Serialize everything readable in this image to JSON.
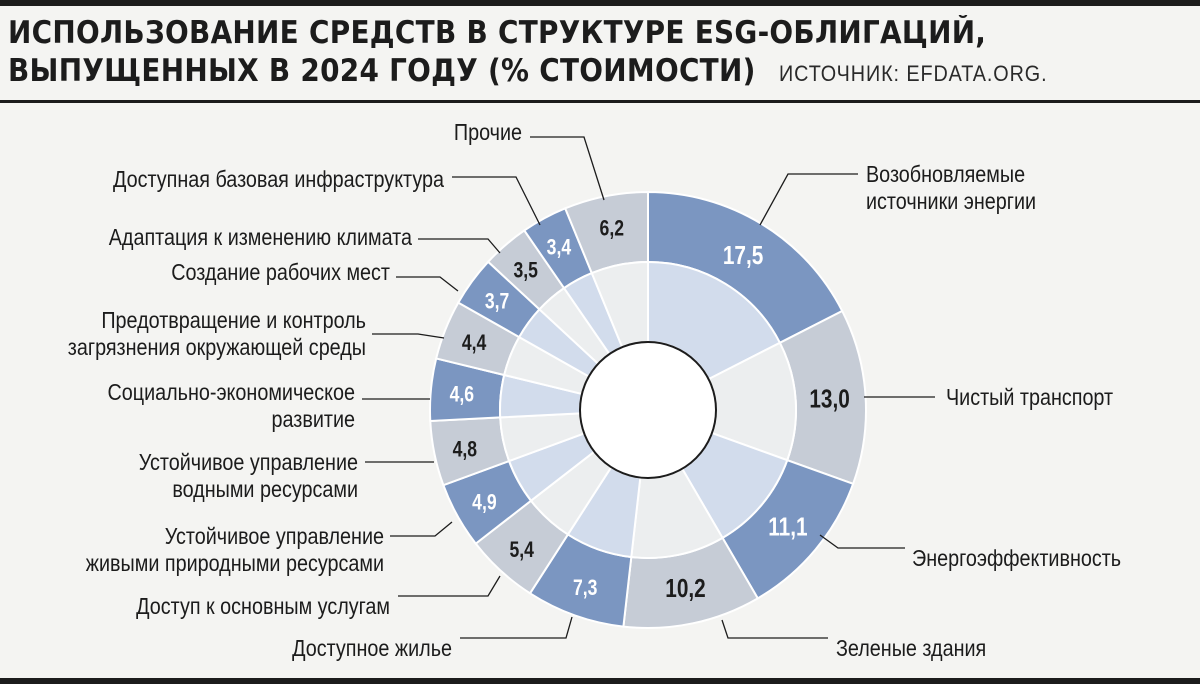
{
  "title_line1": "ИСПОЛЬЗОВАНИЕ СРЕДСТВ В СТРУКТУРЕ ESG-ОБЛИГАЦИЙ,",
  "title_line2": "ВЫПУЩЕННЫХ В 2024 ГОДУ (% СТОИМОСТИ)",
  "source": "ИСТОЧНИК: EFDATA.ORG.",
  "colors": {
    "blue": "#7b96c1",
    "gray": "#c6ccd6",
    "inner_blue": "#d2dcec",
    "inner_gray": "#eceeef",
    "text": "#1c1c1c"
  },
  "chart_data": {
    "type": "pie",
    "title": "ИСПОЛЬЗОВАНИЕ СРЕДСТВ В СТРУКТУРЕ ESG-ОБЛИГАЦИЙ, ВЫПУЩЕННЫХ В 2024 ГОДУ (% СТОИМОСТИ)",
    "unit": "% стоимости",
    "start_at": "12 o'clock, clockwise",
    "slices": [
      {
        "label": "Возобновляемые источники энергии",
        "value": 17.5,
        "display": "17,5",
        "color": "blue"
      },
      {
        "label": "Чистый транспорт",
        "value": 13.0,
        "display": "13,0",
        "color": "gray"
      },
      {
        "label": "Энергоэффективность",
        "value": 11.1,
        "display": "11,1",
        "color": "blue"
      },
      {
        "label": "Зеленые здания",
        "value": 10.2,
        "display": "10,2",
        "color": "gray"
      },
      {
        "label": "Доступное жилье",
        "value": 7.3,
        "display": "7,3",
        "color": "blue"
      },
      {
        "label": "Доступ к основным услугам",
        "value": 5.4,
        "display": "5,4",
        "color": "gray"
      },
      {
        "label": "Устойчивое управление живыми природными ресурсами",
        "value": 4.9,
        "display": "4,9",
        "color": "blue"
      },
      {
        "label": "Устойчивое управление водными ресурсами",
        "value": 4.8,
        "display": "4,8",
        "color": "gray"
      },
      {
        "label": "Социально-экономическое развитие",
        "value": 4.6,
        "display": "4,6",
        "color": "blue"
      },
      {
        "label": "Предотвращение и контроль загрязнения окружающей среды",
        "value": 4.4,
        "display": "4,4",
        "color": "gray"
      },
      {
        "label": "Создание рабочих мест",
        "value": 3.7,
        "display": "3,7",
        "color": "blue"
      },
      {
        "label": "Адаптация к изменению климата",
        "value": 3.5,
        "display": "3,5",
        "color": "gray"
      },
      {
        "label": "Доступная базовая инфраструктура",
        "value": 3.4,
        "display": "3,4",
        "color": "blue"
      },
      {
        "label": "Прочие",
        "value": 6.2,
        "display": "6,2",
        "color": "gray"
      }
    ]
  }
}
